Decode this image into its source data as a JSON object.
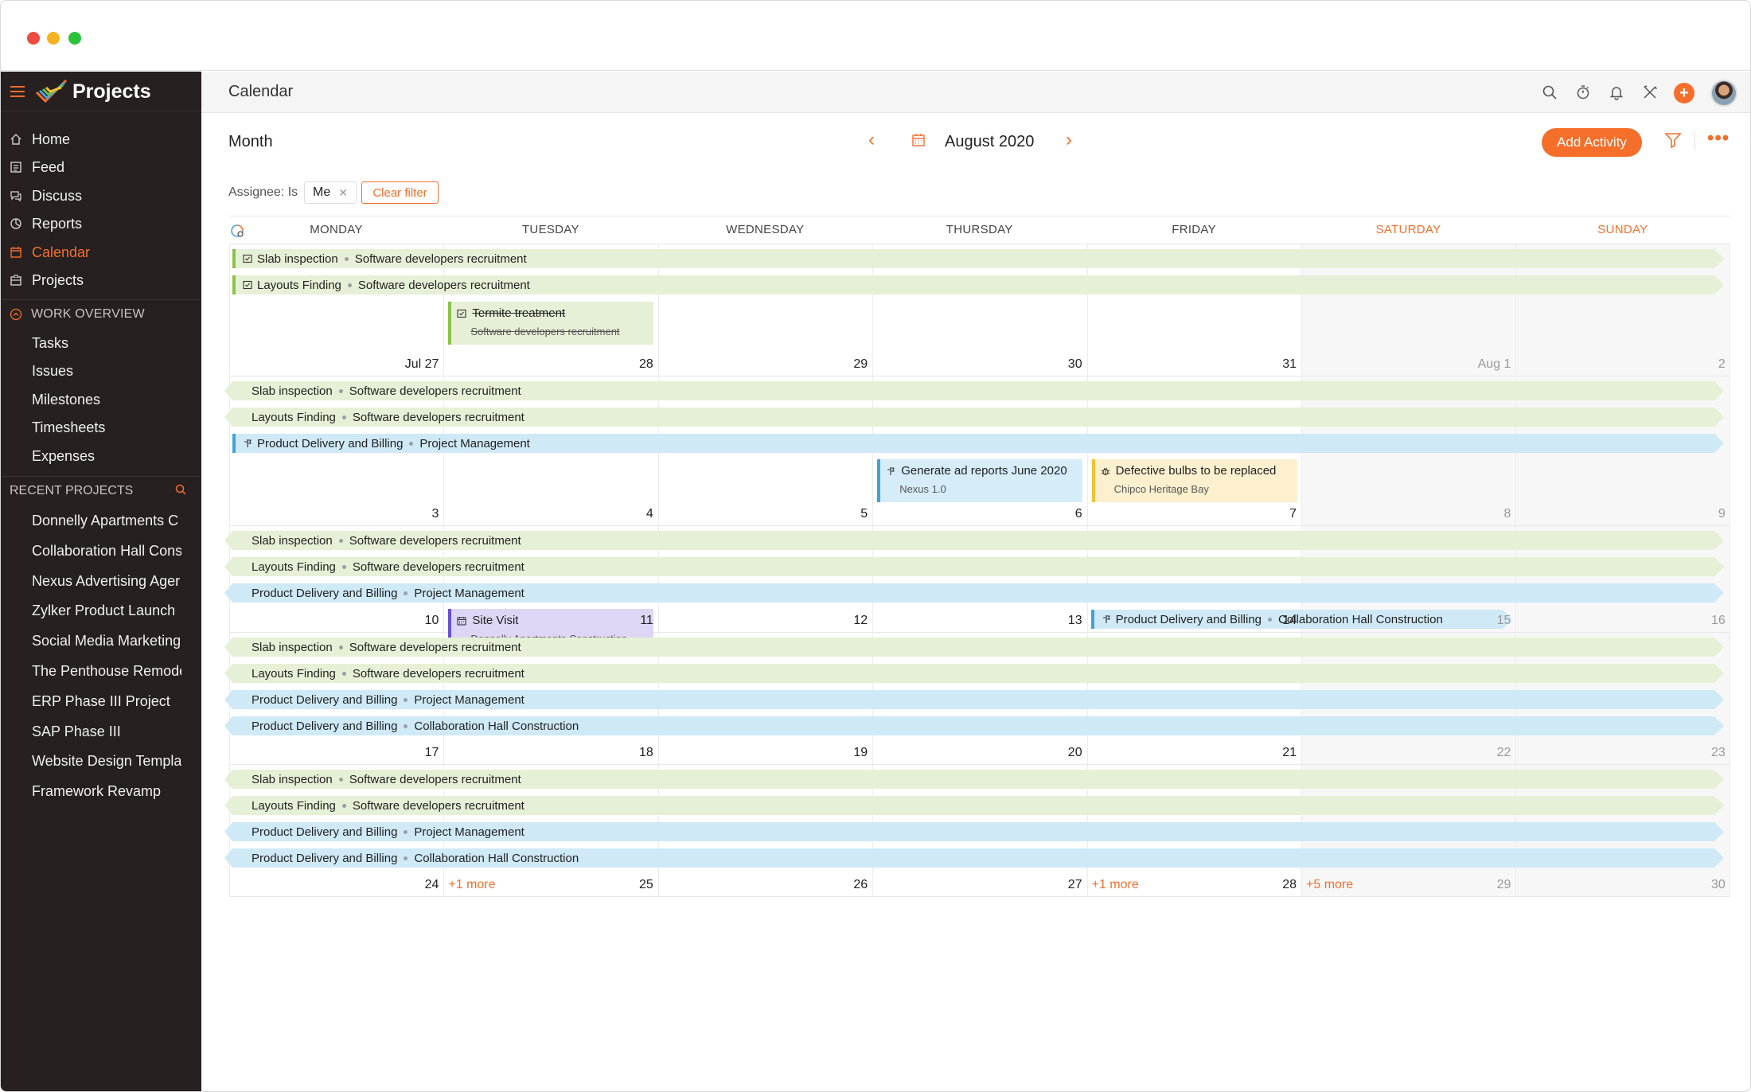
{
  "app": {
    "title": "Projects"
  },
  "sidebar": {
    "nav": [
      {
        "label": "Home",
        "icon": "home-icon"
      },
      {
        "label": "Feed",
        "icon": "feed-icon"
      },
      {
        "label": "Discuss",
        "icon": "discuss-icon"
      },
      {
        "label": "Reports",
        "icon": "reports-icon"
      },
      {
        "label": "Calendar",
        "icon": "calendar-icon",
        "active": true
      },
      {
        "label": "Projects",
        "icon": "projects-icon"
      }
    ],
    "work_overview": {
      "title": "WORK OVERVIEW",
      "items": [
        "Tasks",
        "Issues",
        "Milestones",
        "Timesheets",
        "Expenses"
      ]
    },
    "recent_projects": {
      "title": "RECENT PROJECTS",
      "items": [
        "Donnelly Apartments C",
        "Collaboration Hall Cons",
        "Nexus Advertising Ager",
        "Zylker Product Launch",
        "Social Media Marketing",
        "The Penthouse Remode",
        "ERP Phase III Project",
        "SAP Phase III",
        "Website Design Templa",
        "Framework Revamp"
      ]
    }
  },
  "header": {
    "page_title": "Calendar"
  },
  "toolbar": {
    "view": "Month",
    "month": "August 2020",
    "add_label": "Add Activity",
    "more": "•••"
  },
  "filter": {
    "label": "Assignee: Is",
    "chip": "Me",
    "clear_label": "Clear filter"
  },
  "calendar": {
    "days": [
      "MONDAY",
      "TUESDAY",
      "WEDNESDAY",
      "THURSDAY",
      "FRIDAY",
      "SATURDAY",
      "SUNDAY"
    ],
    "weeks": [
      {
        "dates": [
          "Jul 27",
          "28",
          "29",
          "30",
          "31",
          "Aug 1",
          "2"
        ],
        "bands": [
          {
            "title": "Slab inspection",
            "project": "Software developers recruitment"
          },
          {
            "title": "Layouts Finding",
            "project": "Software developers recruitment"
          }
        ],
        "cards": [
          {
            "title": "Termite treatment",
            "project": "Software developers recruitment"
          }
        ]
      },
      {
        "dates": [
          "3",
          "4",
          "5",
          "6",
          "7",
          "8",
          "9"
        ],
        "bands": [
          {
            "title": "Slab inspection",
            "project": "Software developers recruitment"
          },
          {
            "title": "Layouts Finding",
            "project": "Software developers recruitment"
          },
          {
            "title": "Product Delivery and Billing",
            "project": "Project Management"
          }
        ],
        "cards": [
          {
            "title": "Generate ad reports June 2020",
            "project": "Nexus 1.0"
          },
          {
            "title": "Defective bulbs to be replaced",
            "project": "Chipco Heritage Bay"
          }
        ]
      },
      {
        "dates": [
          "10",
          "11",
          "12",
          "13",
          "14",
          "15",
          "16"
        ],
        "bands": [
          {
            "title": "Slab inspection",
            "project": "Software developers recruitment"
          },
          {
            "title": "Layouts Finding",
            "project": "Software developers recruitment"
          },
          {
            "title": "Product Delivery and Billing",
            "project": "Project Management"
          },
          {
            "title": "Product Delivery and Billing",
            "project": "Collaboration Hall Construction"
          }
        ],
        "cards": [
          {
            "title": "Site Visit",
            "project": "Donnelly Apartments Construction"
          }
        ]
      },
      {
        "dates": [
          "17",
          "18",
          "19",
          "20",
          "21",
          "22",
          "23"
        ],
        "bands": [
          {
            "title": "Slab inspection",
            "project": "Software developers recruitment"
          },
          {
            "title": "Layouts Finding",
            "project": "Software developers recruitment"
          },
          {
            "title": "Product Delivery and Billing",
            "project": "Project Management"
          },
          {
            "title": "Product Delivery and Billing",
            "project": "Collaboration Hall Construction"
          }
        ]
      },
      {
        "dates": [
          "24",
          "25",
          "26",
          "27",
          "28",
          "29",
          "30"
        ],
        "bands": [
          {
            "title": "Slab inspection",
            "project": "Software developers recruitment"
          },
          {
            "title": "Layouts Finding",
            "project": "Software developers recruitment"
          },
          {
            "title": "Product Delivery and Billing",
            "project": "Project Management"
          },
          {
            "title": "Product Delivery and Billing",
            "project": "Collaboration Hall Construction"
          }
        ],
        "more": [
          "+1 more",
          "+1 more",
          "+5 more"
        ]
      }
    ]
  },
  "colors": {
    "accent": "#f56e2a",
    "task_band": "#e6f0d6",
    "milestone_band": "#cfe9f7",
    "sidebar_bg": "#262020"
  }
}
